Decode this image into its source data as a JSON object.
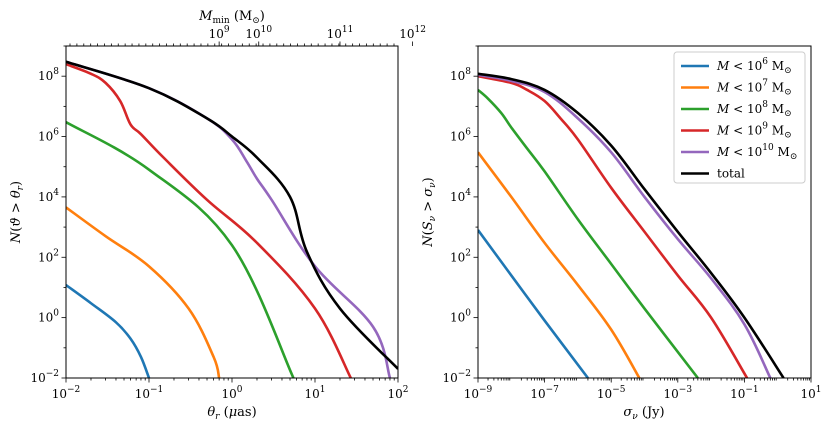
{
  "chart_data": [
    {
      "type": "line",
      "name": "left",
      "xscale": "log",
      "yscale": "log",
      "xlim": [
        0.01,
        100
      ],
      "ylim": [
        0.01,
        1000000000
      ],
      "xlabel": "θ_r (μas)",
      "ylabel": "N(ϑ > θ_r)",
      "x_tick_labels": [
        "10^-2",
        "10^-1",
        "10^0",
        "10^1",
        "10^2"
      ],
      "y_tick_labels": [
        "10^-2",
        "10^0",
        "10^2",
        "10^4",
        "10^6",
        "10^8"
      ],
      "top_axis": {
        "label": "M_min (M_⊙)",
        "tick_labels": [
          "10^9",
          "10^10",
          "10^11",
          "10^12"
        ],
        "tick_positions_theta": [
          0.7,
          2.1,
          20,
          150
        ]
      },
      "series": [
        {
          "name": "M < 10^6 M_⊙",
          "color": "#1f77b4",
          "x": [
            0.01,
            0.02,
            0.04,
            0.06,
            0.08,
            0.1
          ],
          "y": [
            12,
            3,
            0.7,
            0.2,
            0.05,
            0.01
          ]
        },
        {
          "name": "M < 10^7 M_⊙",
          "color": "#ff7f0e",
          "x": [
            0.01,
            0.03,
            0.1,
            0.3,
            0.6,
            0.7
          ],
          "y": [
            4500,
            500,
            50,
            2,
            0.05,
            0.01
          ]
        },
        {
          "name": "M < 10^8 M_⊙",
          "color": "#2ca02c",
          "x": [
            0.01,
            0.1,
            1,
            5.5
          ],
          "y": [
            3000000,
            80000,
            250,
            0.01
          ]
        },
        {
          "name": "M < 10^9 M_⊙",
          "color": "#d62728",
          "x": [
            0.01,
            0.02,
            0.03,
            0.045,
            0.06,
            0.08,
            0.15,
            0.5,
            2,
            10,
            27
          ],
          "y": [
            250000000,
            120000000,
            60000000,
            15000000,
            2500000,
            1200000,
            200000,
            8000,
            300,
            2,
            0.01
          ]
        },
        {
          "name": "M < 10^10 M_⊙",
          "color": "#9467bd",
          "x": [
            0.01,
            0.1,
            0.5,
            1,
            1.5,
            2,
            3,
            10,
            50,
            80
          ],
          "y": [
            300000000,
            40000000,
            4000000,
            800000,
            150000,
            40000,
            8000,
            50,
            0.5,
            0.01
          ]
        },
        {
          "name": "total",
          "color": "#000000",
          "x": [
            0.01,
            0.1,
            0.5,
            1,
            2,
            5,
            8,
            20,
            100
          ],
          "y": [
            300000000,
            40000000,
            4000000,
            1000000,
            200000,
            10000,
            150,
            2,
            0.02
          ]
        }
      ]
    },
    {
      "type": "line",
      "name": "right",
      "xscale": "log",
      "yscale": "log",
      "xlim": [
        1e-09,
        10
      ],
      "ylim": [
        0.01,
        1000000000
      ],
      "xlabel": "σ_ν (Jy)",
      "ylabel": "N(S_ν > σ_ν)",
      "x_tick_labels": [
        "10^-9",
        "10^-7",
        "10^-5",
        "10^-3",
        "10^-1",
        "10^1"
      ],
      "y_tick_labels": [
        "10^-2",
        "10^0",
        "10^2",
        "10^4",
        "10^6",
        "10^8"
      ],
      "legend_position": "top-right",
      "series": [
        {
          "name": "M < 10^6 M_⊙",
          "color": "#1f77b4",
          "x": [
            1e-09,
            1e-08,
            1e-07,
            2e-06
          ],
          "y": [
            800,
            25,
            0.8,
            0.01
          ]
        },
        {
          "name": "M < 10^7 M_⊙",
          "color": "#ff7f0e",
          "x": [
            1e-09,
            1e-08,
            1e-07,
            1e-06,
            1e-05,
            7e-05
          ],
          "y": [
            300000,
            10000,
            300,
            12,
            0.4,
            0.01
          ]
        },
        {
          "name": "M < 10^8 M_⊙",
          "color": "#2ca02c",
          "x": [
            1e-09,
            2e-09,
            5e-09,
            1e-08,
            3e-08,
            1e-07,
            1e-06,
            1e-05,
            0.0001,
            0.004
          ],
          "y": [
            35000000,
            18000000,
            6000000,
            2000000,
            400000,
            70000,
            1800,
            60,
            2,
            0.01
          ]
        },
        {
          "name": "M < 10^9 M_⊙",
          "color": "#d62728",
          "x": [
            1e-09,
            1e-08,
            3e-08,
            1e-07,
            3e-07,
            1e-06,
            1e-05,
            0.0001,
            0.001,
            0.01,
            0.12
          ],
          "y": [
            100000000,
            60000000,
            35000000,
            15000000,
            4000000,
            800000,
            20000,
            700,
            25,
            1,
            0.01
          ]
        },
        {
          "name": "M < 10^10 M_⊙",
          "color": "#9467bd",
          "x": [
            1e-09,
            1e-08,
            1e-07,
            1e-06,
            1e-05,
            0.0001,
            0.001,
            0.01,
            0.1,
            0.6
          ],
          "y": [
            110000000,
            70000000,
            30000000,
            4000000,
            300000,
            10000,
            400,
            20,
            0.6,
            0.01
          ]
        },
        {
          "name": "total",
          "color": "#000000",
          "x": [
            1e-09,
            1e-08,
            1e-07,
            1e-06,
            1e-05,
            0.0001,
            0.001,
            0.01,
            0.1,
            1.5
          ],
          "y": [
            120000000,
            80000000,
            35000000,
            6000000,
            500000,
            18000,
            700,
            30,
            1,
            0.01
          ]
        }
      ]
    }
  ]
}
